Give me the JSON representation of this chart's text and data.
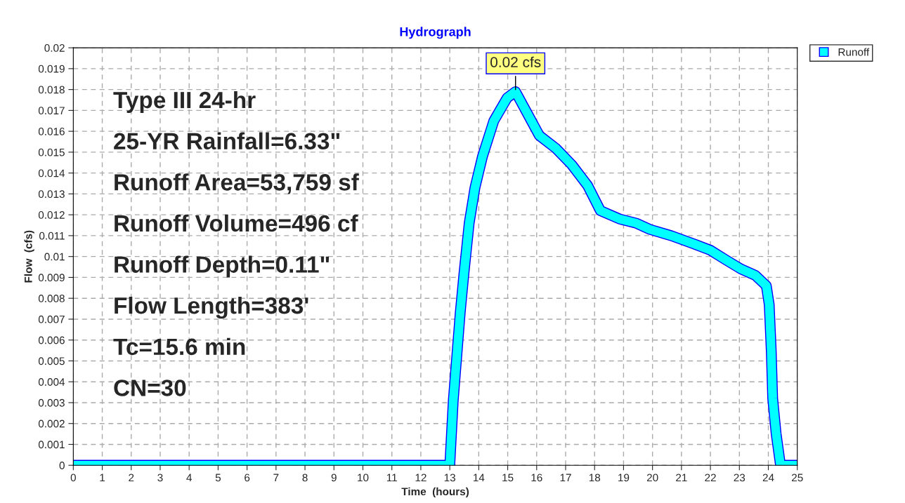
{
  "chart_data": {
    "type": "line",
    "title": "Hydrograph",
    "xlabel": "Time  (hours)",
    "ylabel": "Flow  (cfs)",
    "x": [
      0,
      13.0,
      13.12,
      13.36,
      13.49,
      13.67,
      13.87,
      14.13,
      14.52,
      14.98,
      15.27,
      16.09,
      16.65,
      17.21,
      17.76,
      18.2,
      18.86,
      19.43,
      19.91,
      20.64,
      21.44,
      22.0,
      22.58,
      23.06,
      23.55,
      23.93,
      24.03,
      24.1,
      24.15,
      24.27,
      24.42,
      25
    ],
    "series": [
      {
        "name": "Runoff",
        "color": "#00ffff",
        "values": [
          0,
          0,
          0.0031,
          0.0073,
          0.0092,
          0.0116,
          0.0133,
          0.0148,
          0.0165,
          0.0176,
          0.0179,
          0.0158,
          0.0152,
          0.0144,
          0.0134,
          0.0122,
          0.0118,
          0.0116,
          0.0113,
          0.011,
          0.0106,
          0.0103,
          0.0098,
          0.0094,
          0.0091,
          0.0086,
          0.0077,
          0.0055,
          0.0032,
          0.0015,
          0,
          0
        ]
      }
    ],
    "annotations": [
      {
        "text": "0.02 cfs",
        "x": 15.27,
        "y": 0.0179
      },
      "Type III 24-hr",
      "25-YR Rainfall=6.33\"",
      "Runoff Area=53,759 sf",
      "Runoff Volume=496 cf",
      "Runoff Depth=0.11\"",
      "Flow Length=383'",
      "Tc=15.6 min",
      "CN=30"
    ],
    "xlim": [
      0,
      25
    ],
    "xticks": [
      0,
      1,
      2,
      3,
      4,
      5,
      6,
      7,
      8,
      9,
      10,
      11,
      12,
      13,
      14,
      15,
      16,
      17,
      18,
      19,
      20,
      21,
      22,
      23,
      24,
      25
    ],
    "ylim": [
      0,
      0.02
    ],
    "yticks": [
      0,
      0.001,
      0.002,
      0.003,
      0.004,
      0.005,
      0.006,
      0.007,
      0.008,
      0.009,
      0.01,
      0.011,
      0.012,
      0.013,
      0.014,
      0.015,
      0.016,
      0.017,
      0.018,
      0.019,
      0.02
    ],
    "grid": true,
    "legend": "top right",
    "marker": "none",
    "line_style": "solid"
  }
}
